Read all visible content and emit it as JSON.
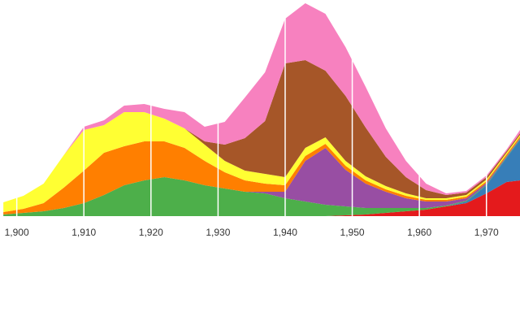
{
  "chart_data": {
    "type": "stacked_area",
    "x": [
      1898,
      1901,
      1904,
      1907,
      1910,
      1913,
      1916,
      1919,
      1922,
      1925,
      1928,
      1931,
      1934,
      1937,
      1940,
      1943,
      1946,
      1949,
      1952,
      1955,
      1958,
      1961,
      1964,
      1967,
      1970,
      1973,
      1975
    ],
    "series": [
      {
        "color": "#e41a1c",
        "values": [
          0,
          0,
          0,
          0,
          0,
          0,
          0,
          0,
          0,
          0,
          0,
          0,
          0,
          0,
          0,
          0,
          0,
          1,
          2,
          4,
          6,
          8,
          12,
          16,
          28,
          42,
          44
        ]
      },
      {
        "color": "#377eb8",
        "values": [
          0,
          0,
          0,
          0,
          0,
          0,
          0,
          0,
          0,
          0,
          0,
          0,
          0,
          0,
          0,
          0,
          0,
          0,
          0,
          0,
          0,
          0,
          0,
          2,
          10,
          30,
          50
        ]
      },
      {
        "color": "#4daf4a",
        "values": [
          2,
          4,
          6,
          10,
          16,
          26,
          38,
          44,
          48,
          44,
          38,
          34,
          30,
          28,
          22,
          18,
          14,
          11,
          8,
          6,
          4,
          2,
          1,
          1,
          1,
          1,
          1
        ]
      },
      {
        "color": "#984ea3",
        "values": [
          0,
          0,
          0,
          0,
          0,
          0,
          0,
          0,
          0,
          0,
          0,
          0,
          0,
          2,
          8,
          50,
          70,
          45,
          30,
          20,
          12,
          8,
          5,
          3,
          2,
          1,
          1
        ]
      },
      {
        "color": "#ff7f00",
        "values": [
          3,
          5,
          10,
          25,
          40,
          52,
          48,
          48,
          44,
          40,
          30,
          20,
          14,
          10,
          8,
          6,
          5,
          5,
          4,
          3,
          3,
          2,
          2,
          2,
          2,
          2,
          2
        ]
      },
      {
        "color": "#ffff33",
        "values": [
          12,
          16,
          24,
          40,
          50,
          34,
          42,
          36,
          28,
          24,
          20,
          14,
          12,
          12,
          10,
          10,
          8,
          6,
          5,
          4,
          3,
          2,
          2,
          2,
          2,
          2,
          2
        ]
      },
      {
        "color": "#a65628",
        "values": [
          0,
          0,
          0,
          0,
          0,
          0,
          0,
          0,
          0,
          0,
          4,
          20,
          40,
          65,
          140,
          108,
          82,
          80,
          60,
          36,
          20,
          10,
          4,
          3,
          3,
          2,
          2
        ]
      },
      {
        "color": "#f781bf",
        "values": [
          0,
          0,
          0,
          0,
          4,
          6,
          8,
          10,
          12,
          20,
          18,
          28,
          50,
          60,
          55,
          70,
          70,
          60,
          50,
          35,
          20,
          8,
          2,
          2,
          2,
          2,
          4
        ]
      }
    ],
    "xlim": [
      1897.5,
      1975
    ],
    "ylim": [
      0,
      263
    ],
    "xticks": [
      {
        "value": 1900,
        "label": "1,900"
      },
      {
        "value": 1910,
        "label": "1,910"
      },
      {
        "value": 1920,
        "label": "1,920"
      },
      {
        "value": 1930,
        "label": "1,930"
      },
      {
        "value": 1940,
        "label": "1,940"
      },
      {
        "value": 1950,
        "label": "1,950"
      },
      {
        "value": 1960,
        "label": "1,960"
      },
      {
        "value": 1970,
        "label": "1,970"
      }
    ],
    "grid": true
  }
}
